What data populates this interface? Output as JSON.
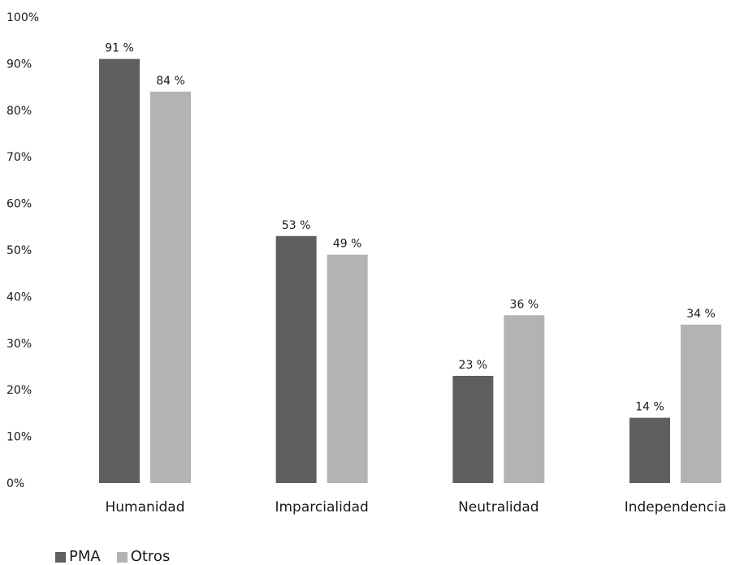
{
  "chart_data": {
    "type": "bar",
    "title": "",
    "xlabel": "",
    "ylabel": "",
    "ylim": [
      0,
      100
    ],
    "yticks": [
      "0%",
      "10%",
      "20%",
      "30%",
      "40%",
      "50%",
      "60%",
      "70%",
      "80%",
      "90%",
      "100%"
    ],
    "categories": [
      "Humanidad",
      "Imparcialidad",
      "Neutralidad",
      "Independencia"
    ],
    "series": [
      {
        "name": "PMA",
        "color": "#5f5f5f",
        "values": [
          91,
          53,
          23,
          14
        ],
        "labels": [
          "91 %",
          "53 %",
          "23 %",
          "14 %"
        ]
      },
      {
        "name": "Otros",
        "color": "#b3b3b3",
        "values": [
          84,
          49,
          36,
          34
        ],
        "labels": [
          "84 %",
          "49 %",
          "36 %",
          "34 %"
        ]
      }
    ],
    "grid": false,
    "legend_position": "bottom-left"
  }
}
